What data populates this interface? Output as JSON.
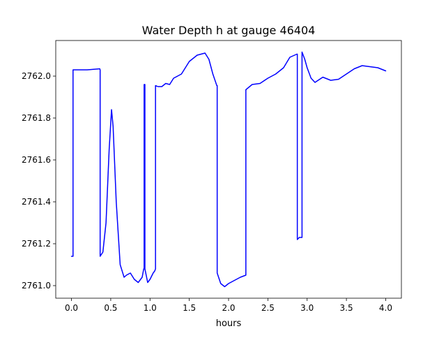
{
  "chart_data": {
    "type": "line",
    "title": "Water Depth h at gauge 46404",
    "xlabel": "hours",
    "ylabel": "",
    "xlim": [
      -0.2,
      4.2
    ],
    "ylim": [
      2760.94,
      2762.17
    ],
    "xticks": [
      0.0,
      0.5,
      1.0,
      1.5,
      2.0,
      2.5,
      3.0,
      3.5,
      4.0
    ],
    "xtick_labels": [
      "0.0",
      "0.5",
      "1.0",
      "1.5",
      "2.0",
      "2.5",
      "3.0",
      "3.5",
      "4.0"
    ],
    "yticks": [
      2761.0,
      2761.2,
      2761.4,
      2761.6,
      2761.8,
      2762.0
    ],
    "ytick_labels": [
      "2761.0",
      "2761.2",
      "2761.4",
      "2761.6",
      "2761.8",
      "2762.0"
    ],
    "grid": false,
    "series": [
      {
        "color": "#0000ff",
        "x": [
          0.0,
          0.02,
          0.02,
          0.2,
          0.36,
          0.365,
          0.365,
          0.4,
          0.44,
          0.48,
          0.51,
          0.53,
          0.57,
          0.62,
          0.67,
          0.7,
          0.75,
          0.8,
          0.85,
          0.9,
          0.92,
          0.925,
          0.925,
          0.935,
          0.935,
          0.97,
          1.0,
          1.04,
          1.06,
          1.07,
          1.07,
          1.1,
          1.15,
          1.2,
          1.25,
          1.3,
          1.35,
          1.4,
          1.5,
          1.6,
          1.7,
          1.75,
          1.8,
          1.85,
          1.855,
          1.855,
          1.9,
          1.95,
          2.0,
          2.05,
          2.1,
          2.15,
          2.22,
          2.22,
          2.3,
          2.4,
          2.5,
          2.6,
          2.7,
          2.78,
          2.87,
          2.875,
          2.875,
          2.9,
          2.92,
          2.93,
          2.935,
          2.935,
          2.97,
          3.0,
          3.05,
          3.1,
          3.2,
          3.3,
          3.4,
          3.5,
          3.6,
          3.7,
          3.8,
          3.9,
          4.0
        ],
        "y": [
          2761.14,
          2761.14,
          2762.03,
          2762.03,
          2762.035,
          2762.03,
          2761.14,
          2761.16,
          2761.3,
          2761.65,
          2761.84,
          2761.76,
          2761.4,
          2761.1,
          2761.04,
          2761.05,
          2761.06,
          2761.03,
          2761.015,
          2761.04,
          2761.08,
          2761.08,
          2761.96,
          2761.96,
          2761.08,
          2761.015,
          2761.03,
          2761.06,
          2761.07,
          2761.08,
          2761.955,
          2761.95,
          2761.95,
          2761.965,
          2761.96,
          2761.99,
          2762.0,
          2762.01,
          2762.07,
          2762.1,
          2762.11,
          2762.08,
          2762.01,
          2761.955,
          2761.955,
          2761.06,
          2761.01,
          2760.995,
          2761.01,
          2761.02,
          2761.03,
          2761.04,
          2761.05,
          2761.935,
          2761.96,
          2761.965,
          2761.99,
          2762.01,
          2762.04,
          2762.09,
          2762.105,
          2762.105,
          2761.22,
          2761.23,
          2761.23,
          2761.23,
          2761.23,
          2762.115,
          2762.08,
          2762.04,
          2761.99,
          2761.97,
          2761.995,
          2761.98,
          2761.985,
          2762.01,
          2762.035,
          2762.05,
          2762.045,
          2762.04,
          2762.025
        ]
      }
    ]
  }
}
